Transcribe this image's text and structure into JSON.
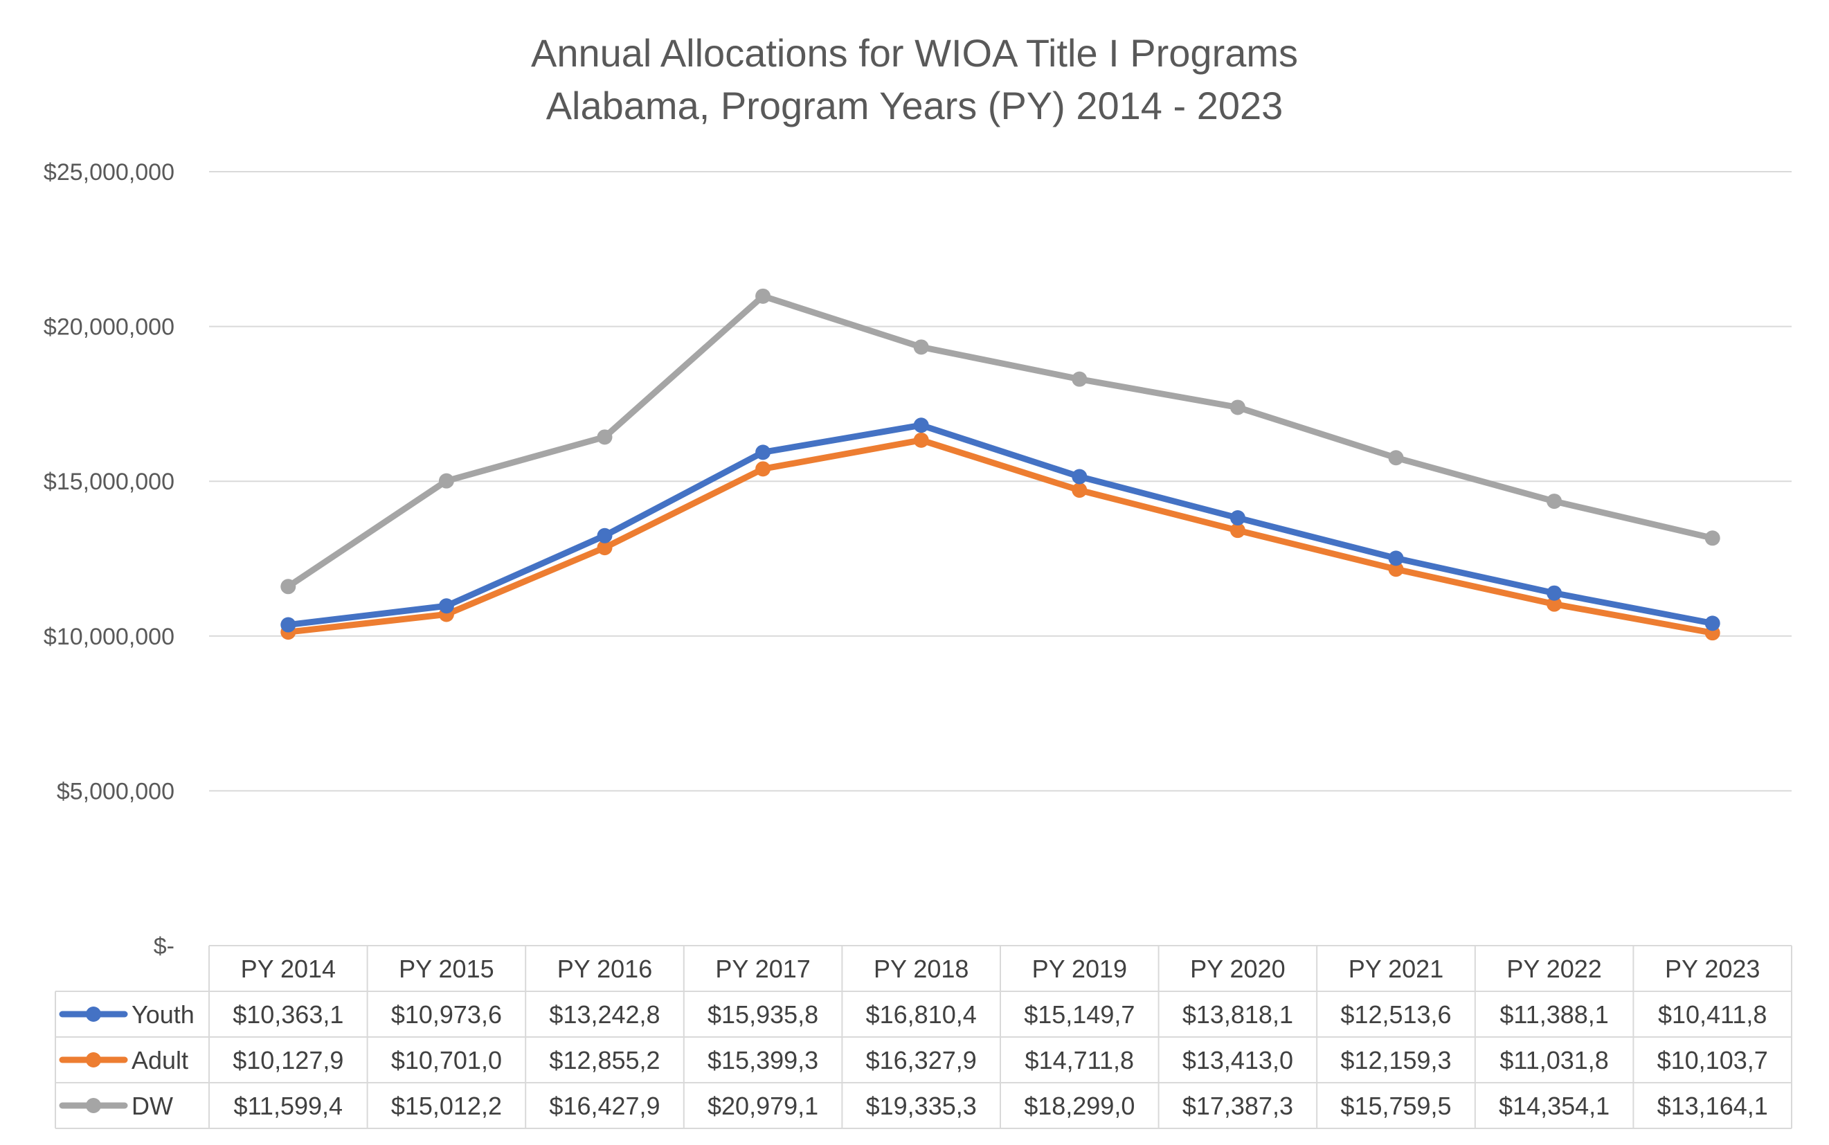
{
  "chart_data": {
    "type": "line",
    "title": "Annual Allocations for WIOA Title I Programs",
    "subtitle": "Alabama, Program Years (PY) 2014 - 2023",
    "xlabel": "",
    "ylabel": "",
    "ylim": [
      0,
      25000000
    ],
    "ytick_labels": [
      "$-",
      "$5,000,000",
      "$10,000,000",
      "$15,000,000",
      "$20,000,000",
      "$25,000,000"
    ],
    "ytick_values": [
      0,
      5000000,
      10000000,
      15000000,
      20000000,
      25000000
    ],
    "grid": true,
    "legend": "data-table",
    "categories": [
      "PY 2014",
      "PY 2015",
      "PY 2016",
      "PY 2017",
      "PY 2018",
      "PY 2019",
      "PY 2020",
      "PY 2021",
      "PY 2022",
      "PY 2023"
    ],
    "series": [
      {
        "name": "Youth",
        "color": "#4472c4",
        "values": [
          10363100,
          10973600,
          13242800,
          15935800,
          16810400,
          15149700,
          13818100,
          12513600,
          11388100,
          10411800
        ],
        "table_labels": [
          "$10,363,1",
          "$10,973,6",
          "$13,242,8",
          "$15,935,8",
          "$16,810,4",
          "$15,149,7",
          "$13,818,1",
          "$12,513,6",
          "$11,388,1",
          "$10,411,8"
        ]
      },
      {
        "name": "Adult",
        "color": "#ed7d31",
        "values": [
          10127900,
          10701000,
          12855200,
          15399300,
          16327900,
          14711800,
          13413000,
          12159300,
          11031800,
          10103700
        ],
        "table_labels": [
          "$10,127,9",
          "$10,701,0",
          "$12,855,2",
          "$15,399,3",
          "$16,327,9",
          "$14,711,8",
          "$13,413,0",
          "$12,159,3",
          "$11,031,8",
          "$10,103,7"
        ]
      },
      {
        "name": "DW",
        "color": "#a5a5a5",
        "values": [
          11599400,
          15012200,
          16427900,
          20979100,
          19335300,
          18299000,
          17387300,
          15759500,
          14354100,
          13164100
        ],
        "table_labels": [
          "$11,599,4",
          "$15,012,2",
          "$16,427,9",
          "$20,979,1",
          "$19,335,3",
          "$18,299,0",
          "$17,387,3",
          "$15,759,5",
          "$14,354,1",
          "$13,164,1"
        ]
      }
    ]
  }
}
